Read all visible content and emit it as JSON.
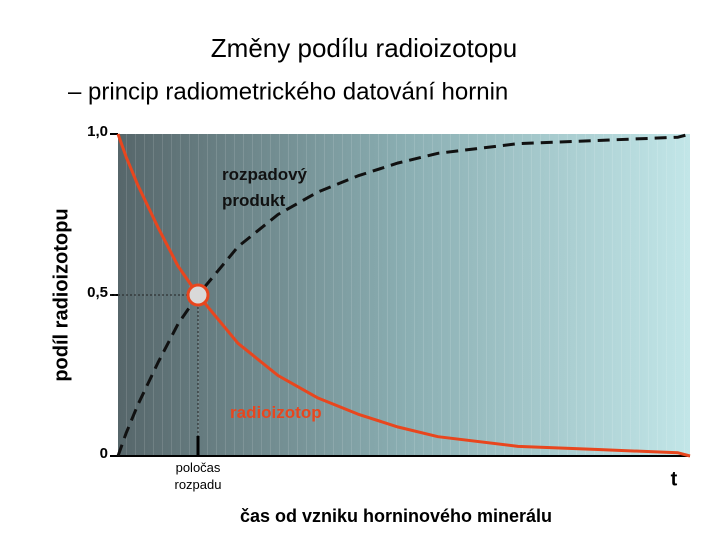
{
  "chart_data": {
    "type": "line",
    "title": "Změny podílu radioizotopu",
    "subtitle": "– princip radiometrického datování hornin",
    "y_label": "podíl radioizotopu",
    "x_label": "čas od vzniku horninového minerálu",
    "x_end_label": "t",
    "x": [
      0,
      0.1,
      0.25,
      0.5,
      0.75,
      1,
      1.5,
      2,
      2.5,
      3,
      3.5,
      4,
      5,
      6,
      7,
      7.15
    ],
    "xlim": [
      0,
      7.15
    ],
    "xticks": [
      {
        "value": 1,
        "label": "poločas rozpadu"
      }
    ],
    "ylim": [
      0,
      1
    ],
    "yticks": [
      0,
      {
        "value": 0.5,
        "label": "0,5"
      },
      {
        "value": 1,
        "label": "1,0"
      }
    ],
    "series": [
      {
        "name": "radioizotop",
        "color": "#e8461e",
        "style": "solid",
        "values": [
          1,
          0.93,
          0.84,
          0.71,
          0.59,
          0.5,
          0.35,
          0.25,
          0.18,
          0.13,
          0.09,
          0.06,
          0.03,
          0.02,
          0.01,
          0.0
        ]
      },
      {
        "name": "rozpadový produkt",
        "color": "#111111",
        "style": "dashed",
        "values": [
          0,
          0.07,
          0.16,
          0.29,
          0.41,
          0.5,
          0.65,
          0.75,
          0.82,
          0.87,
          0.91,
          0.94,
          0.97,
          0.98,
          0.99,
          1.0
        ]
      }
    ]
  }
}
